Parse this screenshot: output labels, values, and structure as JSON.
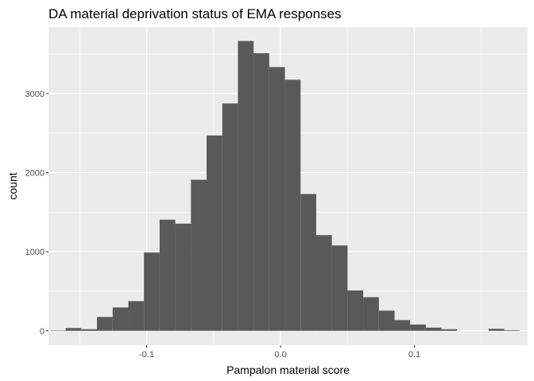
{
  "chart_data": {
    "type": "bar",
    "title": "DA material deprivation status of EMA responses",
    "xlabel": "Pampalon material score",
    "ylabel": "count",
    "bin_width": 0.0117,
    "xlim": [
      -0.1734,
      0.1846
    ],
    "ylim": [
      -183,
      3842
    ],
    "x_ticks": [
      {
        "value": -0.1,
        "label": "-0.1"
      },
      {
        "value": 0.0,
        "label": "0.0"
      },
      {
        "value": 0.1,
        "label": "0.1"
      }
    ],
    "y_ticks": [
      {
        "value": 0,
        "label": "0"
      },
      {
        "value": 1000,
        "label": "1000"
      },
      {
        "value": 2000,
        "label": "2000"
      },
      {
        "value": 3000,
        "label": "3000"
      }
    ],
    "bins": [
      {
        "x": -0.1664,
        "count": 5
      },
      {
        "x": -0.1547,
        "count": 35
      },
      {
        "x": -0.143,
        "count": 20
      },
      {
        "x": -0.1313,
        "count": 175
      },
      {
        "x": -0.1196,
        "count": 295
      },
      {
        "x": -0.1079,
        "count": 375
      },
      {
        "x": -0.0962,
        "count": 990
      },
      {
        "x": -0.0845,
        "count": 1405
      },
      {
        "x": -0.0728,
        "count": 1355
      },
      {
        "x": -0.0611,
        "count": 1910
      },
      {
        "x": -0.0494,
        "count": 2470
      },
      {
        "x": -0.0377,
        "count": 2875
      },
      {
        "x": -0.026,
        "count": 3665
      },
      {
        "x": -0.0143,
        "count": 3510
      },
      {
        "x": -0.0026,
        "count": 3335
      },
      {
        "x": 0.0091,
        "count": 3175
      },
      {
        "x": 0.0208,
        "count": 1730
      },
      {
        "x": 0.0325,
        "count": 1210
      },
      {
        "x": 0.0442,
        "count": 1080
      },
      {
        "x": 0.0559,
        "count": 510
      },
      {
        "x": 0.0676,
        "count": 425
      },
      {
        "x": 0.0793,
        "count": 255
      },
      {
        "x": 0.091,
        "count": 135
      },
      {
        "x": 0.1027,
        "count": 80
      },
      {
        "x": 0.1144,
        "count": 40
      },
      {
        "x": 0.1261,
        "count": 20
      },
      {
        "x": 0.1378,
        "count": 0
      },
      {
        "x": 0.1495,
        "count": 0
      },
      {
        "x": 0.1612,
        "count": 25
      },
      {
        "x": 0.1729,
        "count": 8
      }
    ],
    "grid": true,
    "bar_color": "#595959",
    "panel_color": "#ebebeb",
    "grid_color": "#ffffff"
  }
}
